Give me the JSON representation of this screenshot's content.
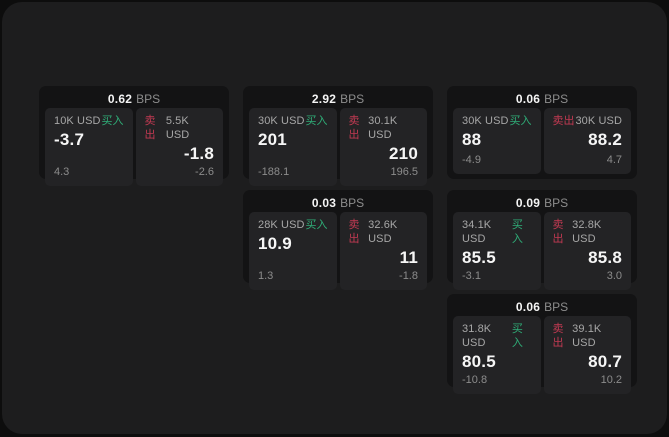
{
  "labels": {
    "bps_unit": "BPS",
    "buy": "买入",
    "sell": "卖出"
  },
  "colors": {
    "background": "#0d0d0d",
    "panel": "#1d1d1e",
    "card": "#131314",
    "side_panel": "#232325",
    "buy_green": "#2fae78",
    "sell_red": "#c23a52",
    "text_primary": "#f5f5f5",
    "text_muted": "#8c8c8c"
  },
  "cards": [
    {
      "bps": "0.62",
      "buy": {
        "size": "10K USD",
        "price": "-3.7",
        "change": "4.3"
      },
      "sell": {
        "size": "5.5K USD",
        "price": "-1.8",
        "change": "-2.6"
      }
    },
    {
      "bps": "2.92",
      "buy": {
        "size": "30K USD",
        "price": "201",
        "change": "-188.1"
      },
      "sell": {
        "size": "30.1K USD",
        "price": "210",
        "change": "196.5"
      }
    },
    {
      "bps": "0.06",
      "buy": {
        "size": "30K USD",
        "price": "88",
        "change": "-4.9"
      },
      "sell": {
        "size": "30K USD",
        "price": "88.2",
        "change": "4.7"
      }
    },
    {
      "bps": "0.03",
      "buy": {
        "size": "28K USD",
        "price": "10.9",
        "change": "1.3"
      },
      "sell": {
        "size": "32.6K USD",
        "price": "11",
        "change": "-1.8"
      }
    },
    {
      "bps": "0.09",
      "buy": {
        "size": "34.1K USD",
        "price": "85.5",
        "change": "-3.1"
      },
      "sell": {
        "size": "32.8K USD",
        "price": "85.8",
        "change": "3.0"
      }
    },
    {
      "bps": "0.06",
      "buy": {
        "size": "31.8K USD",
        "price": "80.5",
        "change": "-10.8"
      },
      "sell": {
        "size": "39.1K USD",
        "price": "80.7",
        "change": "10.2"
      }
    }
  ]
}
